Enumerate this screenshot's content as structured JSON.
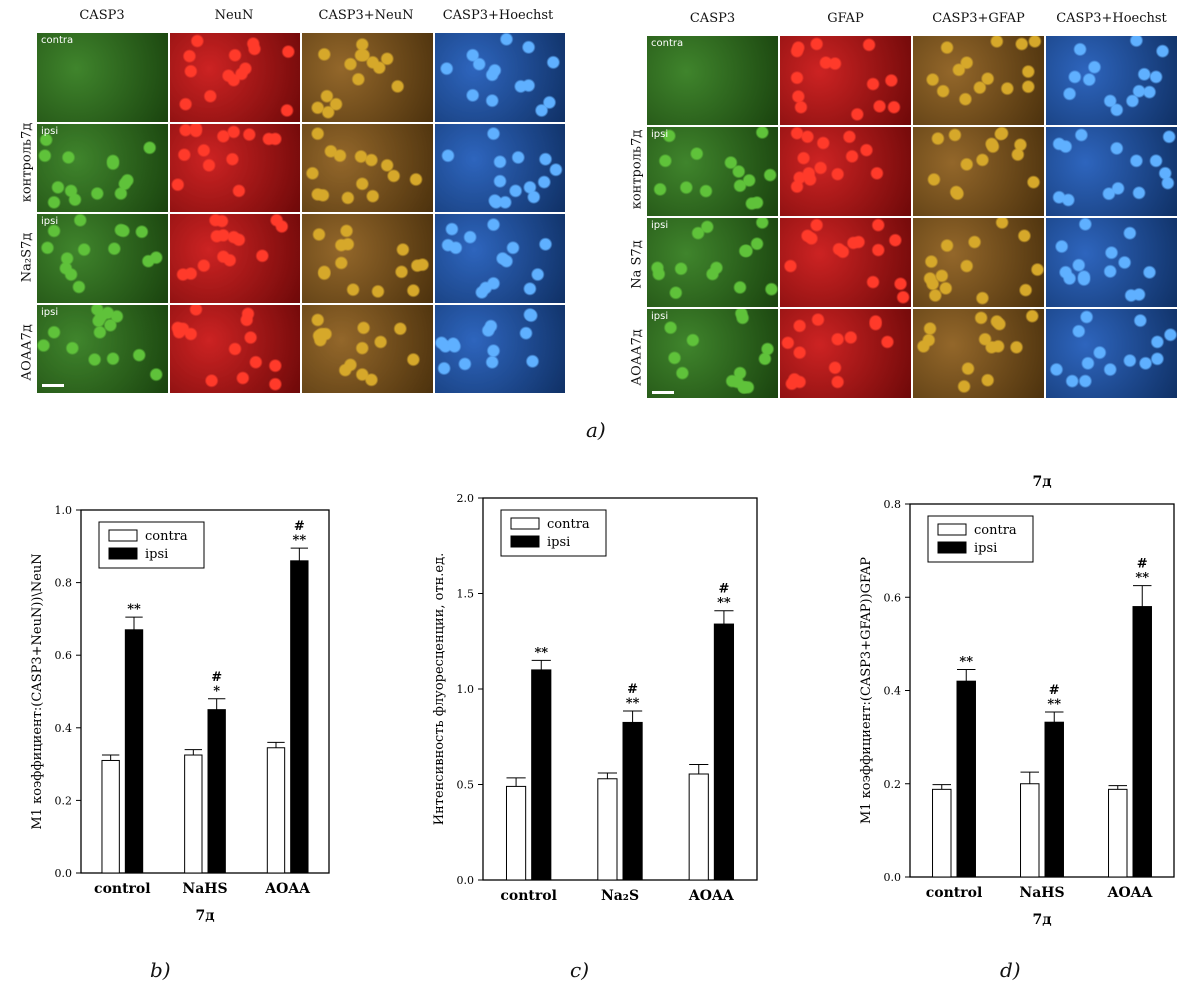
{
  "figure": {
    "a_label": "a)",
    "b_label": "b)",
    "c_label": "c)",
    "d_label": "d)"
  },
  "panel_left": {
    "columns": [
      "CASP3",
      "NeuN",
      "CASP3+NeuN",
      "CASP3+Hoechst"
    ],
    "row_labels": [
      "контроль7д",
      "Na₂S7д",
      "АОАА7д"
    ],
    "tags": [
      "contra",
      "ipsi",
      "ipsi",
      "ipsi"
    ]
  },
  "panel_right": {
    "columns": [
      "CASP3",
      "GFAP",
      "CASP3+GFAP",
      "CASP3+Hoechst"
    ],
    "row_labels": [
      "контроль7д",
      "Na S7д",
      "АОАА7д"
    ],
    "tags": [
      "contra",
      "ipsi",
      "ipsi",
      "ipsi"
    ]
  },
  "colors": {
    "green": "#2f7a1a",
    "red": "#c81010",
    "merge": "#8a5a18",
    "blue": "#1c58b8"
  },
  "chart_data": [
    {
      "id": "b",
      "type": "bar",
      "categories": [
        "control",
        "NaHS",
        "AOAA"
      ],
      "xlabel": "7д",
      "ylabel": "M1 коэффициент:(CASP3+NeuN))\\NeuN",
      "ylim": [
        0,
        1.0
      ],
      "yticks": [
        "0.0",
        "0.2",
        "0.4",
        "0.6",
        "0.8",
        "1.0"
      ],
      "series": [
        {
          "name": "contra",
          "values": [
            0.31,
            0.325,
            0.345
          ],
          "errors": [
            0.015,
            0.015,
            0.015
          ]
        },
        {
          "name": "ipsi",
          "values": [
            0.67,
            0.45,
            0.86
          ],
          "errors": [
            0.035,
            0.03,
            0.035
          ]
        }
      ],
      "annotations": [
        "**",
        "#\n*",
        "#\n**"
      ],
      "legend": "top-left"
    },
    {
      "id": "c",
      "type": "bar",
      "categories": [
        "control",
        "Na₂S",
        "AOAA"
      ],
      "xlabel": "",
      "ylabel": "Интенсивность флуоресценции, отн.ед.",
      "ylim": [
        0,
        2.0
      ],
      "yticks": [
        "0.0",
        "0.5",
        "1.0",
        "1.5",
        "2.0"
      ],
      "series": [
        {
          "name": "contra",
          "values": [
            0.49,
            0.53,
            0.555
          ],
          "errors": [
            0.045,
            0.03,
            0.05
          ]
        },
        {
          "name": "ipsi",
          "values": [
            1.1,
            0.825,
            1.34
          ],
          "errors": [
            0.05,
            0.06,
            0.07
          ]
        }
      ],
      "annotations": [
        "**",
        "#\n**",
        "#\n**"
      ],
      "legend": "top-left"
    },
    {
      "id": "d",
      "type": "bar",
      "title": "7д",
      "categories": [
        "control",
        "NaHS",
        "AOAA"
      ],
      "xlabel": "7д",
      "ylabel": "M1 коэффициент:(CASP3+GFAP))GFAP",
      "ylim": [
        0,
        0.8
      ],
      "yticks": [
        "0.0",
        "0.2",
        "0.4",
        "0.6",
        "0.8"
      ],
      "series": [
        {
          "name": "contra",
          "values": [
            0.188,
            0.2,
            0.188
          ],
          "errors": [
            0.01,
            0.025,
            0.008
          ]
        },
        {
          "name": "ipsi",
          "values": [
            0.42,
            0.332,
            0.58
          ],
          "errors": [
            0.025,
            0.022,
            0.045
          ]
        }
      ],
      "annotations": [
        "**",
        "#\n**",
        "#\n**"
      ],
      "legend": "top-left"
    }
  ]
}
